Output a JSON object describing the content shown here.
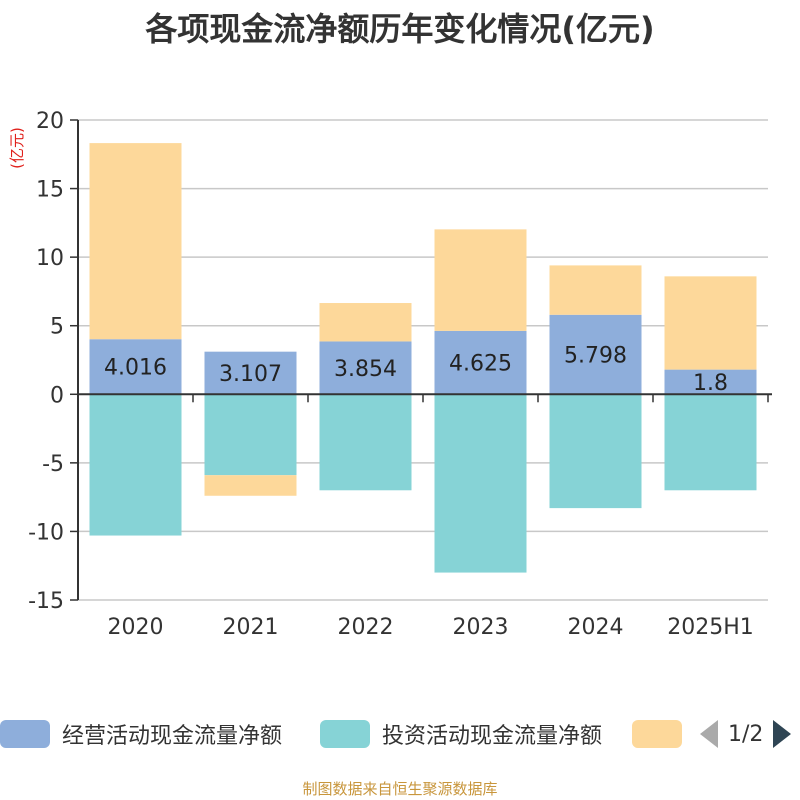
{
  "chart_data": {
    "type": "bar",
    "stacked": true,
    "title": "各项现金流净额历年变化情况(亿元)",
    "ylabel": "(亿元)",
    "ylim": [
      -15,
      20
    ],
    "yticks": [
      20,
      15,
      10,
      5,
      0,
      -5,
      -10,
      -15
    ],
    "categories": [
      "2020",
      "2021",
      "2022",
      "2023",
      "2024",
      "2025H1"
    ],
    "grid": true,
    "legend_position": "bottom",
    "series": [
      {
        "name": "经营活动现金流量净额",
        "color": "#8eaedb",
        "values": [
          4.016,
          3.107,
          3.854,
          4.625,
          5.798,
          1.8
        ],
        "labels": [
          "4.016",
          "3.107",
          "3.854",
          "4.625",
          "5.798",
          "1.8"
        ]
      },
      {
        "name": "投资活动现金流量净额",
        "color": "#86d3d6",
        "values": [
          -10.3,
          -5.9,
          -7.0,
          -13.0,
          -8.3,
          -7.0
        ]
      },
      {
        "name": "",
        "color": "#fdd89a",
        "values": [
          14.3,
          -1.5,
          2.8,
          7.4,
          3.6,
          6.8
        ]
      }
    ]
  },
  "legend": {
    "page": "1/2"
  },
  "footer": {
    "source": "制图数据来自恒生聚源数据库"
  }
}
